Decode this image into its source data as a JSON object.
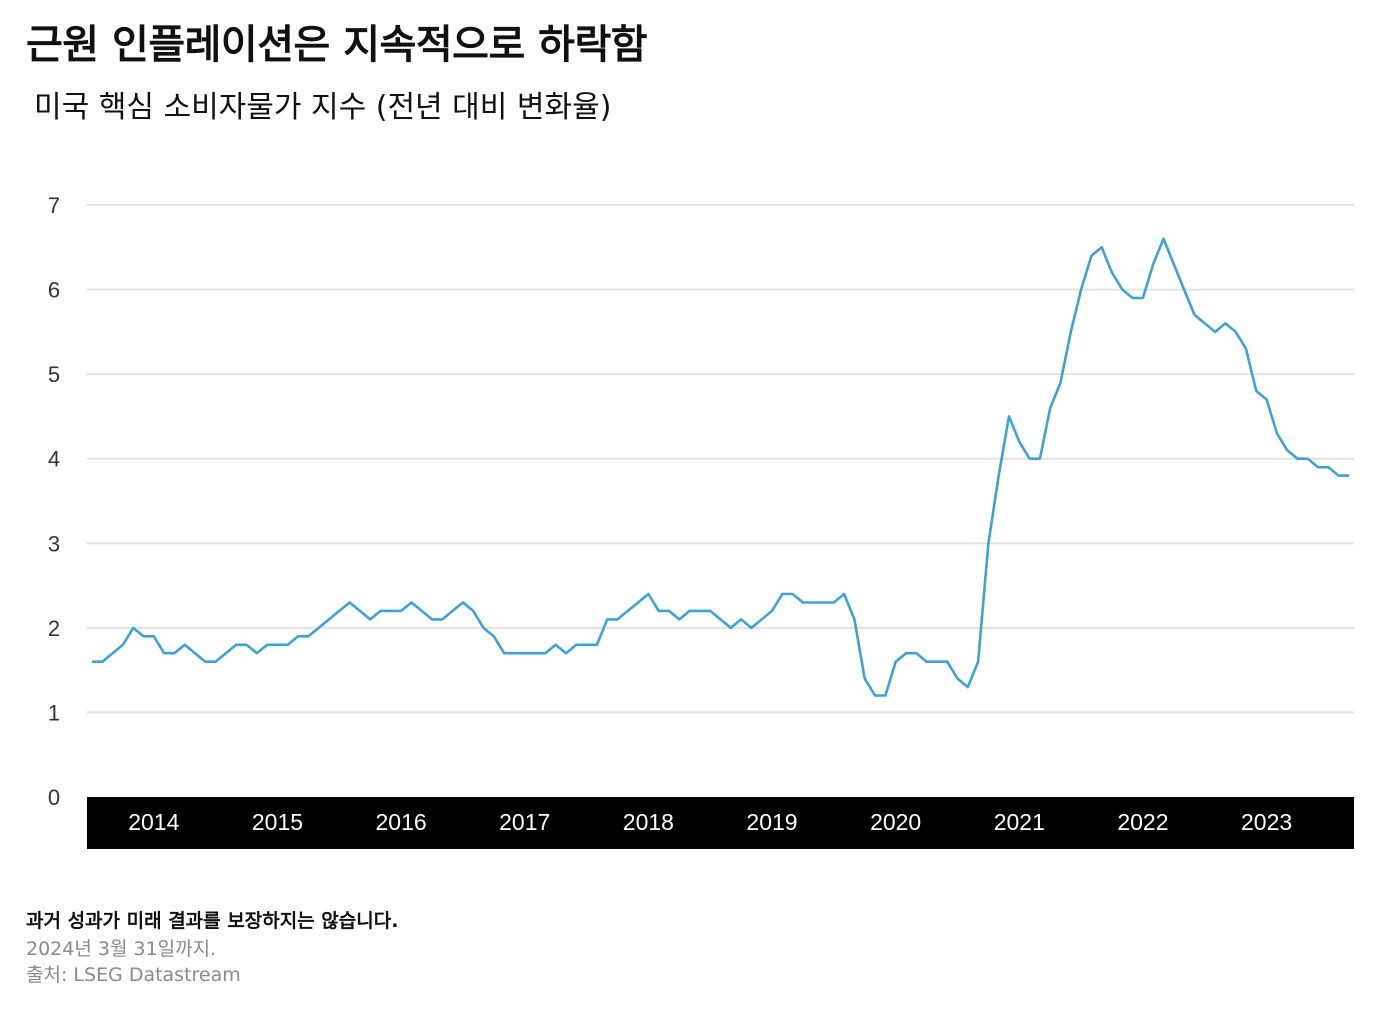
{
  "title": "근원 인플레이션은 지속적으로 하락함",
  "subtitle": "미국 핵심 소비자물가 지수 (전년 대비 변화율)",
  "footnotes": {
    "disclaimer": "과거 성과가 미래 결과를 보장하지는 않습니다.",
    "date": "2024년 3월 31일까지.",
    "source": "출처: LSEG Datastream"
  },
  "colors": {
    "line": "#3fa3d2",
    "axis_band": "#000000",
    "grid": "#e3e3e3"
  },
  "chart_data": {
    "type": "line",
    "title": "근원 인플레이션은 지속적으로 하락함",
    "subtitle": "미국 핵심 소비자물가 지수 (전년 대비 변화율)",
    "ylim": [
      0,
      7
    ],
    "yticks": [
      0,
      1,
      2,
      3,
      4,
      5,
      6,
      7
    ],
    "xlim": [
      "2014-01",
      "2024-03"
    ],
    "xticks": [
      "2014",
      "2015",
      "2016",
      "2017",
      "2018",
      "2019",
      "2020",
      "2021",
      "2022",
      "2023"
    ],
    "grid": true,
    "series": [
      {
        "x": [
          "2014-01",
          "2014-02",
          "2014-03",
          "2014-04",
          "2014-05",
          "2014-06",
          "2014-07",
          "2014-08",
          "2014-09",
          "2014-10",
          "2014-11",
          "2014-12",
          "2015-01",
          "2015-02",
          "2015-03",
          "2015-04",
          "2015-05",
          "2015-06",
          "2015-07",
          "2015-08",
          "2015-09",
          "2015-10",
          "2015-11",
          "2015-12",
          "2016-01",
          "2016-02",
          "2016-03",
          "2016-04",
          "2016-05",
          "2016-06",
          "2016-07",
          "2016-08",
          "2016-09",
          "2016-10",
          "2016-11",
          "2016-12",
          "2017-01",
          "2017-02",
          "2017-03",
          "2017-04",
          "2017-05",
          "2017-06",
          "2017-07",
          "2017-08",
          "2017-09",
          "2017-10",
          "2017-11",
          "2017-12",
          "2018-01",
          "2018-02",
          "2018-03",
          "2018-04",
          "2018-05",
          "2018-06",
          "2018-07",
          "2018-08",
          "2018-09",
          "2018-10",
          "2018-11",
          "2018-12",
          "2019-01",
          "2019-02",
          "2019-03",
          "2019-04",
          "2019-05",
          "2019-06",
          "2019-07",
          "2019-08",
          "2019-09",
          "2019-10",
          "2019-11",
          "2019-12",
          "2020-01",
          "2020-02",
          "2020-03",
          "2020-04",
          "2020-05",
          "2020-06",
          "2020-07",
          "2020-08",
          "2020-09",
          "2020-10",
          "2020-11",
          "2020-12",
          "2021-01",
          "2021-02",
          "2021-03",
          "2021-04",
          "2021-05",
          "2021-06",
          "2021-07",
          "2021-08",
          "2021-09",
          "2021-10",
          "2021-11",
          "2021-12",
          "2022-01",
          "2022-02",
          "2022-03",
          "2022-04",
          "2022-05",
          "2022-06",
          "2022-07",
          "2022-08",
          "2022-09",
          "2022-10",
          "2022-11",
          "2022-12",
          "2023-01",
          "2023-02",
          "2023-03",
          "2023-04",
          "2023-05",
          "2023-06",
          "2023-07",
          "2023-08",
          "2023-09",
          "2023-10",
          "2023-11",
          "2023-12",
          "2024-01",
          "2024-02",
          "2024-03"
        ],
        "values": [
          1.6,
          1.6,
          1.7,
          1.8,
          2.0,
          1.9,
          1.9,
          1.7,
          1.7,
          1.8,
          1.7,
          1.6,
          1.6,
          1.7,
          1.8,
          1.8,
          1.7,
          1.8,
          1.8,
          1.8,
          1.9,
          1.9,
          2.0,
          2.1,
          2.2,
          2.3,
          2.2,
          2.1,
          2.2,
          2.2,
          2.2,
          2.3,
          2.2,
          2.1,
          2.1,
          2.2,
          2.3,
          2.2,
          2.0,
          1.9,
          1.7,
          1.7,
          1.7,
          1.7,
          1.7,
          1.8,
          1.7,
          1.8,
          1.8,
          1.8,
          2.1,
          2.1,
          2.2,
          2.3,
          2.4,
          2.2,
          2.2,
          2.1,
          2.2,
          2.2,
          2.2,
          2.1,
          2.0,
          2.1,
          2.0,
          2.1,
          2.2,
          2.4,
          2.4,
          2.3,
          2.3,
          2.3,
          2.3,
          2.4,
          2.1,
          1.4,
          1.2,
          1.2,
          1.6,
          1.7,
          1.7,
          1.6,
          1.6,
          1.6,
          1.4,
          1.3,
          1.6,
          3.0,
          3.8,
          4.5,
          4.2,
          4.0,
          4.0,
          4.6,
          4.9,
          5.5,
          6.0,
          6.4,
          6.5,
          6.2,
          6.0,
          5.9,
          5.9,
          6.3,
          6.6,
          6.3,
          6.0,
          5.7,
          5.6,
          5.5,
          5.6,
          5.5,
          5.3,
          4.8,
          4.7,
          4.3,
          4.1,
          4.0,
          4.0,
          3.9,
          3.9,
          3.8,
          3.8
        ]
      }
    ]
  }
}
